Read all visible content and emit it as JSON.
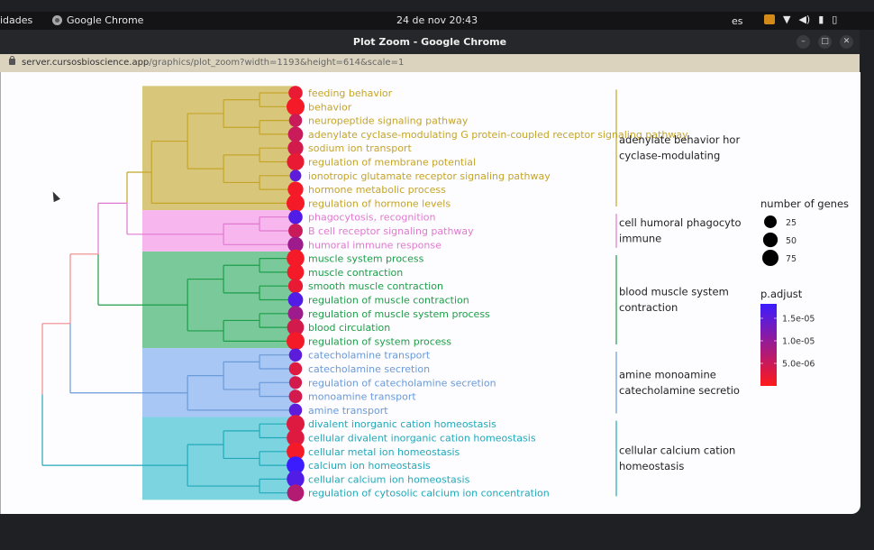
{
  "os_topbar": {
    "activities": "idades",
    "app_name": "Google Chrome",
    "datetime": "24 de nov  20:43",
    "language": "es",
    "tray_icons": [
      "screen-share-icon",
      "wifi-icon",
      "volume-icon",
      "microphone-icon",
      "battery-icon"
    ]
  },
  "window": {
    "title": "Plot Zoom - Google Chrome",
    "controls": [
      "minimize",
      "maximize",
      "close"
    ]
  },
  "urlbar": {
    "domain": "server.cursosbioscience.app",
    "path": "/graphics/plot_zoom?width=1193&height=614&scale=1"
  },
  "chart_data": {
    "type": "treeplot",
    "title": "",
    "description": "Hierarchical clustering tree of enriched GO terms, dot size = number of genes, dot color = p.adjust",
    "clusters": [
      {
        "label_lines": [
          "adenylate behavior hor",
          "cyclase-modulating"
        ],
        "color": "#c4a52a",
        "bg": "#d8c77a",
        "terms": [
          {
            "name": "feeding behavior",
            "count": 30,
            "p_adjust": 2e-06
          },
          {
            "name": "behavior",
            "count": 75,
            "p_adjust": 1e-06
          },
          {
            "name": "neuropeptide signaling pathway",
            "count": 22,
            "p_adjust": 5e-06
          },
          {
            "name": "adenylate cyclase-modulating G protein-coupled receptor signaling pathway",
            "count": 40,
            "p_adjust": 5e-06
          },
          {
            "name": "sodium ion transport",
            "count": 45,
            "p_adjust": 4e-06
          },
          {
            "name": "regulation of membrane potential",
            "count": 65,
            "p_adjust": 2e-06
          },
          {
            "name": "ionotropic glutamate receptor signaling pathway",
            "count": 12,
            "p_adjust": 1.5e-05
          },
          {
            "name": "hormone metabolic process",
            "count": 45,
            "p_adjust": 1e-06
          },
          {
            "name": "regulation of hormone levels",
            "count": 75,
            "p_adjust": 1e-06
          }
        ]
      },
      {
        "label_lines": [
          "cell humoral phagocyto",
          "immune"
        ],
        "color": "#e07ad0",
        "bg": "#f7b6ee",
        "terms": [
          {
            "name": "phagocytosis, recognition",
            "count": 30,
            "p_adjust": 1.6e-05
          },
          {
            "name": "B cell receptor signaling pathway",
            "count": 32,
            "p_adjust": 5e-06
          },
          {
            "name": "humoral immune response",
            "count": 45,
            "p_adjust": 9e-06
          }
        ]
      },
      {
        "label_lines": [
          "blood muscle system",
          "contraction"
        ],
        "color": "#1e9e4a",
        "bg": "#79c99a",
        "terms": [
          {
            "name": "muscle system process",
            "count": 70,
            "p_adjust": 1e-06
          },
          {
            "name": "muscle contraction",
            "count": 60,
            "p_adjust": 1e-06
          },
          {
            "name": "smooth muscle contraction",
            "count": 35,
            "p_adjust": 2e-06
          },
          {
            "name": "regulation of muscle contraction",
            "count": 40,
            "p_adjust": 1.6e-05
          },
          {
            "name": "regulation of muscle system process",
            "count": 42,
            "p_adjust": 9e-06
          },
          {
            "name": "blood circulation",
            "count": 60,
            "p_adjust": 4e-06
          },
          {
            "name": "regulation of system process",
            "count": 75,
            "p_adjust": 1e-06
          }
        ]
      },
      {
        "label_lines": [
          "amine monoamine",
          "catecholamine secretio"
        ],
        "color": "#6a9ad8",
        "bg": "#a9c7f5",
        "terms": [
          {
            "name": "catecholamine transport",
            "count": 22,
            "p_adjust": 1.5e-05
          },
          {
            "name": "catecholamine secretion",
            "count": 22,
            "p_adjust": 3e-06
          },
          {
            "name": "regulation of catecholamine secretion",
            "count": 20,
            "p_adjust": 4e-06
          },
          {
            "name": "monoamine transport",
            "count": 24,
            "p_adjust": 4e-06
          },
          {
            "name": "amine transport",
            "count": 22,
            "p_adjust": 1.5e-05
          }
        ]
      },
      {
        "label_lines": [
          "cellular calcium cation",
          "homeostasis"
        ],
        "color": "#22a9b9",
        "bg": "#7bd4df",
        "terms": [
          {
            "name": "divalent inorganic cation homeostasis",
            "count": 75,
            "p_adjust": 3e-06
          },
          {
            "name": "cellular divalent inorganic cation homeostasis",
            "count": 70,
            "p_adjust": 3e-06
          },
          {
            "name": "cellular metal ion homeostasis",
            "count": 72,
            "p_adjust": 1e-06
          },
          {
            "name": "calcium ion homeostasis",
            "count": 72,
            "p_adjust": 1.8e-05
          },
          {
            "name": "cellular calcium ion homeostasis",
            "count": 68,
            "p_adjust": 1.6e-05
          },
          {
            "name": "regulation of cytosolic calcium ion concentration",
            "count": 60,
            "p_adjust": 7e-06
          }
        ]
      }
    ],
    "legend_size": {
      "title": "number of genes",
      "values": [
        25,
        50,
        75
      ]
    },
    "legend_color": {
      "title": "p.adjust",
      "ticks": [
        "1.5e-05",
        "1.0e-05",
        "5.0e-06"
      ],
      "low_color": "#ff1a1a",
      "high_color": "#3b1cff"
    }
  }
}
